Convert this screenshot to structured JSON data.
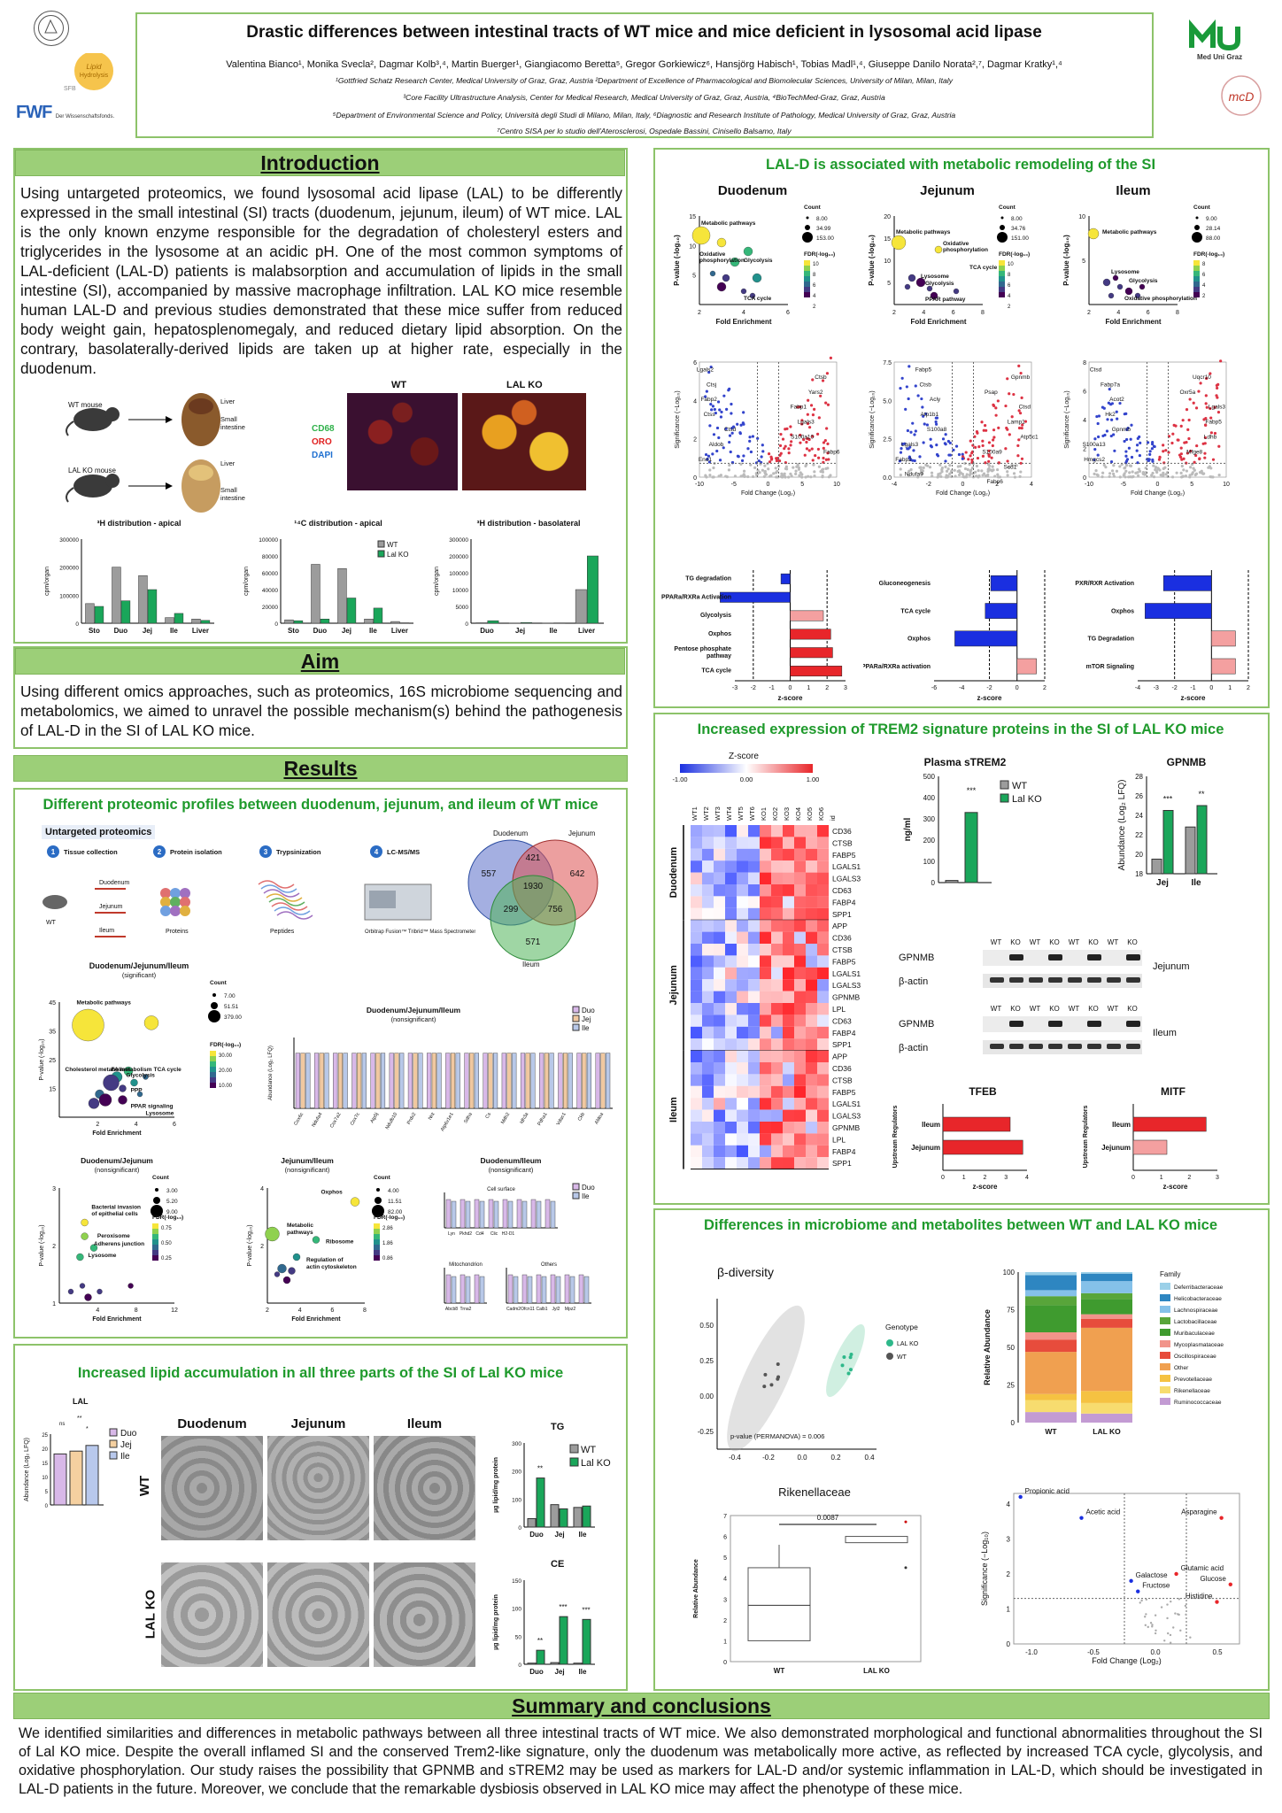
{
  "header": {
    "title": "Drastic differences between intestinal tracts of WT mice and mice deficient in lysosomal acid lipase",
    "authors": "Valentina Bianco¹, Monika Svecla², Dagmar Kolb³,⁴, Martin Buerger¹, Giangiacomo Beretta⁵, Gregor Gorkiewicz⁶, Hansjörg Habisch¹, Tobias Madl¹,⁴, Giuseppe Danilo Norata²,⁷, Dagmar Kratky¹,⁴",
    "aff1": "¹Gottfried Schatz Research Center, Medical University of Graz, Graz, Austria ²Department of Excellence of Pharmacological and Biomolecular Sciences, University of Milan, Milan, Italy",
    "aff2": "³Core Facility Ultrastructure Analysis, Center for Medical Research, Medical University of Graz, Graz, Austria, ⁴BioTechMed-Graz, Graz, Austria",
    "aff3": "⁵Department of Environmental Science and Policy, Università degli Studi di Milano, Milan, Italy, ⁶Diagnostic and Research Institute of Pathology, Medical University of Graz, Graz, Austria",
    "aff4": "⁷Centro SISA per lo studio dell'Aterosclerosi, Ospedale Bassini, Cinisello Balsamo, Italy",
    "logo_lipid": "Lipid Hydrolysis",
    "logo_sfb": "SFB",
    "logo_fwf": "FWF",
    "logo_fwf_sub": "Der Wissenschaftsfonds.",
    "logo_mug": "Med Uni Graz"
  },
  "intro": {
    "title": "Introduction",
    "text": "Using untargeted proteomics, we found lysosomal acid lipase (LAL) to be differently expressed in the small intestinal (SI) tracts (duodenum, jejunum, ileum) of WT mice. LAL is the only known enzyme responsible for the degradation of cholesteryl esters and triglycerides in the lysosome at an acidic pH. One of the most common symptoms of LAL-deficient (LAL-D) patients is malabsorption and accumulation of lipids in the small intestine (SI), accompanied by massive macrophage infiltration. LAL KO mice resemble human LAL-D and  previous studies demonstrated that these mice suffer from reduced body weight gain, hepatosplenomegaly, and reduced dietary lipid absorption. On the contrary, basolaterally-derived lipids are taken up at higher rate, especially in the duodenum.",
    "wt_mouse": "WT mouse",
    "ko_mouse": "LAL KO mouse",
    "liver": "Liver",
    "small_int": "Small intestine",
    "wt": "WT",
    "lal_ko": "LAL KO",
    "cd68": "CD68",
    "oro": "ORO",
    "dapi": "DAPI",
    "chart1_title": "³H distribution - apical",
    "chart2_title": "¹⁴C distribution - apical",
    "chart3_title": "³H distribution - basolateral",
    "ylabel": "cpm/organ",
    "legend_wt": "WT",
    "legend_ko": "Lal KO"
  },
  "aim": {
    "title": "Aim",
    "text": "Using different omics approaches, such as proteomics, 16S microbiome sequencing and metabolomics, we aimed to unravel the possible mechanism(s) behind the pathogenesis of LAL-D in the SI of LAL KO mice."
  },
  "results": {
    "title": "Results",
    "prot_title": "Different proteomic profiles between duodenum, jejunum, and ileum of WT mice",
    "untargeted": "Untargeted proteomics",
    "steps": [
      "Tissue collection",
      "Protein isolation",
      "Trypsinization",
      "LC-MS/MS"
    ],
    "step_nums": [
      "1",
      "2",
      "3",
      "4"
    ],
    "tissue_labels": [
      "Duodenum",
      "Jejunum",
      "Ileum"
    ],
    "step_subs": [
      "Proteins",
      "Peptides",
      "Orbitrap Fusion™ Tribrid™ Mass Spectrometer"
    ],
    "wt": "WT",
    "venn": {
      "labels": [
        "Duodenum",
        "Jejunum",
        "Ileum"
      ],
      "values": [
        "557",
        "421",
        "642",
        "1930",
        "299",
        "756",
        "571"
      ]
    },
    "dji_title": "Duodenum/Jejunum/Ileum",
    "dji_sub": "(significant)",
    "dji_ns_title": "Duodenum/Jejunum/Ileum",
    "dji_ns_sub": "(nonsignificant)",
    "dji_labels": [
      "Metabolic pathways",
      "Cholesterol metabolism",
      "FA metabolism",
      "Glycolysis",
      "TCA cycle",
      "PPP",
      "PPAR signaling",
      "Lysosome"
    ],
    "count": "Count",
    "count_vals": [
      "7.00",
      "51.51",
      "379.00"
    ],
    "fdr_vals": [
      "30.00",
      "20.00",
      "10.00"
    ],
    "fold_enrichment": "Fold Enrichment",
    "pvalue": "P-value (-log₁₀)",
    "fdr": "FDR(-log₁₀)",
    "ns_legend": [
      "Duo",
      "Jej",
      "Ile"
    ],
    "ns_genes": [
      "Cox6c",
      "Ndufa4",
      "Cox7a2",
      "Cox7c",
      "Atp5j",
      "Ndufb10",
      "Prdx2",
      "Nnt",
      "Atp6v1e1",
      "Sdha",
      "Cs",
      "Mdh2",
      "Idh3a",
      "Pdha1",
      "Vdac1",
      "Ckb",
      "Aldoa"
    ],
    "ns_ylabel": "Abundance (Log₂ LFQ)",
    "dj_title": "Duodenum/Jejunum",
    "dj_sub": "(nonsignificant)",
    "dj_labels": [
      "Bacterial invasion of epithelial cells",
      "Peroxisome",
      "Adherens junction",
      "Lysosome"
    ],
    "dj_count": [
      "3.00",
      "5.20",
      "9.00"
    ],
    "dj_fdr": [
      "0.75",
      "0.50",
      "0.25"
    ],
    "ji_title": "Jejunum/Ileum",
    "ji_sub": "(nonsignificant)",
    "ji_labels": [
      "Oxphos",
      "Metabolic pathways",
      "Ribosome",
      "Regulation of actin cytoskeleton"
    ],
    "ji_count": [
      "4.00",
      "11.51",
      "82.00"
    ],
    "ji_fdr": [
      "2.86",
      "1.86",
      "0.86"
    ],
    "di_title": "Duodenum/Ileum",
    "di_sub": "(nonsignificant)",
    "di_cell": "Cell surface",
    "di_mito": "Mitochondrion",
    "di_others": "Others",
    "di_legend": [
      "Duo",
      "Ile"
    ]
  },
  "lipid": {
    "title": "Increased lipid accumulation in all three parts of the SI of Lal KO mice",
    "lal": "LAL",
    "ylabel": "Abundance (Log₂ LFQ)",
    "legend": [
      "Duo",
      "Jej",
      "Ile"
    ],
    "sections": [
      "Duodenum",
      "Jejunum",
      "Ileum"
    ],
    "wt": "WT",
    "ko": "LAL KO",
    "tg": "TG",
    "ce": "CE",
    "ylabel2": "µg lipid/mg protein",
    "legend_wt": "WT",
    "legend_ko": "Lal KO",
    "cats": [
      "Duo",
      "Jej",
      "Ile"
    ],
    "sig_ns": "ns",
    "sig_star": "*",
    "sig2": "**",
    "sig3": "***"
  },
  "lald": {
    "title": "LAL-D is associated with metabolic remodeling of the SI",
    "segments": [
      "Duodenum",
      "Jejunum",
      "Ileum"
    ],
    "duo_labels": [
      "Metabolic pathways",
      "Oxidative phosphorylation",
      "Glycolysis",
      "TCA cycle"
    ],
    "jej_labels": [
      "Metabolic pathways",
      "Oxidative phosphorylation",
      "Lysosome",
      "Glycolysis",
      "TCA cycle",
      "PPAR pathway"
    ],
    "ile_labels": [
      "Metabolic pathways",
      "Lysosome",
      "Glycolysis",
      "Oxidative phosphorylation"
    ],
    "count": "Count",
    "duo_count": [
      "8.00",
      "34.99",
      "153.00"
    ],
    "jej_count": [
      "8.00",
      "34.76",
      "151.00"
    ],
    "ile_count": [
      "9.00",
      "28.14",
      "88.00"
    ],
    "fdr": "FDR(-log₁₀)",
    "fold": "Fold Enrichment",
    "pval": "P-value (-log₁₀)",
    "volcano_x": "Fold Change (Log₂)",
    "volcano_y": "Significance (−Log₁₀)",
    "v1_labels": [
      "Lgals2",
      "Ctsb",
      "Ctsj",
      "Yars2",
      "Fabp2",
      "Fabp1",
      "Ctss",
      "Lgals3",
      "Ctsd",
      "S100a10",
      "Aldob",
      "Fabp6",
      "Eno1"
    ],
    "v2_labels": [
      "Fabp5",
      "Gpnmb",
      "Ctsb",
      "Psap",
      "Acly",
      "Ctsd",
      "Atp1b1",
      "Lamp1",
      "S100a8",
      "Atp5c1",
      "Lgals3",
      "S100a9",
      "Fabp2",
      "Scd1",
      "Ndufa9",
      "Fabp6"
    ],
    "v3_labels": [
      "Ctsd",
      "Uqcr10",
      "Fabp7a",
      "Oxr5a",
      "Acot2",
      "Lgals3",
      "Hk2",
      "Fabp5",
      "Gpnmb",
      "Ldhb",
      "S100a13",
      "Mfge8",
      "Hmgcs2"
    ],
    "z_duo": [
      "TG degradation",
      "PPARa/RXRa Activation",
      "Glycolysis",
      "Oxphos",
      "Pentose phosphate pathway",
      "TCA cycle"
    ],
    "z_jej": [
      "Gluconeogenesis",
      "TCA cycle",
      "Oxphos",
      "PPARa/RXRa activation"
    ],
    "z_ile": [
      "PXR/RXR Activation",
      "Oxphos",
      "TG Degradation",
      "mTOR Signaling"
    ],
    "zscore": "z-score"
  },
  "trem": {
    "title": "Increased expression of TREM2 signature proteins in the SI of LAL KO mice",
    "zlabel": "Z-score",
    "z_ticks": [
      "-1.00",
      "0.00",
      "1.00"
    ],
    "cols": [
      "WT1",
      "WT2",
      "WT3",
      "WT4",
      "WT5",
      "WT6",
      "KO1",
      "KO2",
      "KO3",
      "KO4",
      "KO5",
      "KO6",
      "id"
    ],
    "duo_genes": [
      "CD36",
      "CTSB",
      "FABP5",
      "LGALS1",
      "LGALS3",
      "CD63",
      "FABP4",
      "SPP1"
    ],
    "jej_genes": [
      "APP",
      "CD36",
      "CTSB",
      "FABP5",
      "LGALS1",
      "LGALS3",
      "GPNMB",
      "LPL",
      "CD63",
      "FABP4",
      "SPP1"
    ],
    "ile_genes": [
      "APP",
      "CD36",
      "CTSB",
      "FABP5",
      "LGALS1",
      "LGALS3",
      "GPNMB",
      "LPL",
      "FABP4",
      "SPP1"
    ],
    "row_groups": [
      "Duodenum",
      "Jejunum",
      "Ileum"
    ],
    "strem_title": "Plasma sTREM2",
    "strem_y": "ng/ml",
    "strem_ticks": [
      "0",
      "100",
      "200",
      "300",
      "400",
      "500"
    ],
    "legend_wt": "WT",
    "legend_ko": "Lal KO",
    "gpnmb_title": "GPNMB",
    "gpnmb_y": "Abundance (Log₂ LFQ)",
    "gpnmb_ticks": [
      "18",
      "20",
      "22",
      "24",
      "26",
      "28"
    ],
    "gpnmb_cats": [
      "Jej",
      "Ile"
    ],
    "wb_gpnmb": "GPNMB",
    "wb_actin": "β-actin",
    "wb_jej": "Jejunum",
    "wb_ile": "Ileum",
    "wb_lanes": [
      "WT",
      "KO",
      "WT",
      "KO",
      "WT",
      "KO",
      "WT",
      "KO"
    ],
    "tfeb": "TFEB",
    "mitf": "MITF",
    "upreg": "Upstream Regulators",
    "zscore": "z-score",
    "bars": [
      "Ileum",
      "Jejunum"
    ],
    "sig3": "***",
    "sig2": "**"
  },
  "micro": {
    "title": "Differences in microbiome and metabolites between WT and LAL KO mice",
    "beta": "β-diversity",
    "genotype": "Genotype",
    "g_ko": "LAL KO",
    "g_wt": "WT",
    "permanova": "p-value (PERMANOVA) = 0.006",
    "family": "Family",
    "families": [
      "Deferribacteraceae",
      "Helicobacteraceae",
      "Lachnospiraceae",
      "Lactobacillaceae",
      "Muribaculaceae",
      "Mycoplasmataceae",
      "Oscillospiraceae",
      "Other",
      "Prevotellaceae",
      "Rikenellaceae",
      "Ruminococcaceae"
    ],
    "family_colors": [
      "#9bd0e8",
      "#2e86c1",
      "#85c1e9",
      "#58a53a",
      "#3f9b2f",
      "#f1948a",
      "#e74c3c",
      "#f0a050",
      "#f5c242",
      "#f7dc6f",
      "#c39bd3"
    ],
    "rel_ab": "Relative Abundance",
    "cats": [
      "WT",
      "LAL KO"
    ],
    "rike": "Rikenellaceae",
    "rike_p": "0.0087",
    "met_labels": [
      "Propionic acid",
      "Acetic acid",
      "Asparagine",
      "Galactose",
      "Glutamic acid",
      "Fructose",
      "Glucose",
      "Histidine"
    ],
    "met_x": "Fold Change (Log₂)",
    "met_y": "Significance (−Log₁₀)"
  },
  "summary": {
    "title": "Summary and conclusions",
    "text": "We identified similarities and differences in metabolic pathways between all three intestinal tracts of WT mice. We also demonstrated morphological and functional abnormalities throughout the SI of Lal KO mice. Despite the overall inflamed SI and the conserved Trem2-like signature, only the duodenum was metabolically more active, as reflected by increased TCA cycle, glycolysis, and oxidative phosphorylation. Our study raises the possibility that GPNMB and sTREM2 may be used as markers for LAL-D and/or systemic inflammation in LAL-D, which should be investigated in LAL-D patients in the future. Moreover, we conclude that the remarkable dysbiosis observed in LAL KO mice may affect the phenotype of these mice."
  },
  "colors": {
    "green": "#8dc36a",
    "title_green": "#1f9a2c",
    "wt_grey": "#8c8c8c",
    "ko_green": "#1aa65a",
    "red": "#e8262a",
    "blue": "#1a2fe0"
  }
}
